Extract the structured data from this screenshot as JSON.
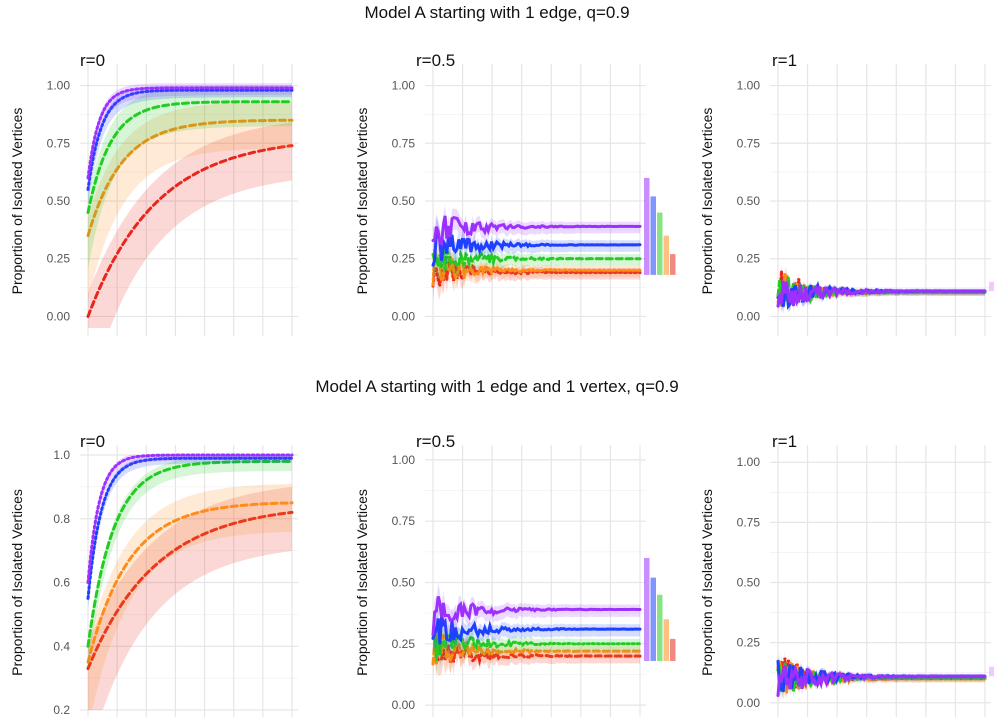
{
  "colors": {
    "purple": "#9b30ff",
    "blue": "#1e40ff",
    "green": "#22cc22",
    "orange": "#ff8c1a",
    "red": "#e8261c"
  },
  "rows": [
    {
      "title": "Model A starting with 1 edge, q=0.9"
    },
    {
      "title": "Model A starting with 1 edge and 1 vertex, q=0.9"
    }
  ],
  "chart_data": [
    {
      "type": "line",
      "row": 0,
      "col": 0,
      "panel_title": "r=0",
      "ylabel": "Proportion of Isolated Vertices",
      "ylim": [
        -0.05,
        1.05
      ],
      "yticks": [
        0,
        0.25,
        0.5,
        0.75,
        1
      ],
      "ytick_labels": [
        "0.00",
        "0.25",
        "0.50",
        "0.75",
        "1.00"
      ],
      "xlim": [
        0,
        100
      ],
      "grid": true,
      "series": [
        {
          "color": "purple",
          "style": "dotted",
          "final": 0.99,
          "start": 0.6,
          "k": 18,
          "band": 0.02
        },
        {
          "color": "blue",
          "style": "dotted",
          "final": 0.98,
          "start": 0.55,
          "k": 15,
          "band": 0.02
        },
        {
          "color": "green",
          "style": "dashed",
          "final": 0.93,
          "start": 0.45,
          "k": 9,
          "band": 0.07
        },
        {
          "color": "orange",
          "style": "dashed",
          "final": 0.85,
          "start": 0.35,
          "k": 6,
          "band": 0.08
        },
        {
          "color": "red",
          "style": "dashed",
          "final": 0.74,
          "start": 0,
          "k": 3,
          "band": 0.1
        }
      ]
    },
    {
      "type": "line",
      "row": 0,
      "col": 1,
      "panel_title": "r=0.5",
      "ylabel": "Proportion of Isolated Vertices",
      "ylim": [
        -0.05,
        1.05
      ],
      "yticks": [
        0,
        0.25,
        0.5,
        0.75,
        1
      ],
      "ytick_labels": [
        "0.00",
        "0.25",
        "0.50",
        "0.75",
        "1.00"
      ],
      "xlim": [
        0,
        100
      ],
      "grid": true,
      "series": [
        {
          "color": "purple",
          "style": "solid",
          "final": 0.39,
          "band": 0.02
        },
        {
          "color": "blue",
          "style": "solid",
          "final": 0.31,
          "band": 0.02
        },
        {
          "color": "green",
          "style": "dashed",
          "final": 0.25,
          "band": 0.02
        },
        {
          "color": "orange",
          "style": "dotted",
          "final": 0.2,
          "band": 0.02
        },
        {
          "color": "red",
          "style": "dotted",
          "final": 0.19,
          "band": 0.02
        }
      ],
      "side_bars": [
        0.6,
        0.52,
        0.45,
        0.35,
        0.27
      ]
    },
    {
      "type": "line",
      "row": 0,
      "col": 2,
      "panel_title": "r=1",
      "ylabel": "Proportion of Isolated Vertices",
      "ylim": [
        -0.05,
        1.05
      ],
      "yticks": [
        0,
        0.25,
        0.5,
        0.75,
        1
      ],
      "ytick_labels": [
        "0.00",
        "0.25",
        "0.50",
        "0.75",
        "1.00"
      ],
      "xlim": [
        0,
        100
      ],
      "grid": true,
      "series": [
        {
          "color": "purple",
          "style": "solid",
          "final": 0.11,
          "band": 0.01
        },
        {
          "color": "blue",
          "style": "solid",
          "final": 0.11,
          "band": 0.01
        },
        {
          "color": "green",
          "style": "dashed",
          "final": 0.105,
          "band": 0.01
        },
        {
          "color": "orange",
          "style": "dashed",
          "final": 0.105,
          "band": 0.01
        },
        {
          "color": "red",
          "style": "dotted",
          "final": 0.105,
          "band": 0.01
        }
      ],
      "side_bars": [
        0.15
      ]
    },
    {
      "type": "line",
      "row": 1,
      "col": 0,
      "panel_title": "r=0",
      "ylabel": "Proportion of Isolated Vertices",
      "ylim": [
        0.2,
        1.0
      ],
      "yticks": [
        0.2,
        0.4,
        0.6,
        0.8,
        1.0
      ],
      "ytick_labels": [
        "0.2",
        "0.4",
        "0.6",
        "0.8",
        "1.0"
      ],
      "xlim": [
        0,
        100
      ],
      "grid": true,
      "series": [
        {
          "color": "purple",
          "style": "dotted",
          "final": 1.0,
          "start": 0.6,
          "k": 18,
          "band": 0.01
        },
        {
          "color": "blue",
          "style": "dotted",
          "final": 0.99,
          "start": 0.55,
          "k": 15,
          "band": 0.01
        },
        {
          "color": "green",
          "style": "dashed",
          "final": 0.98,
          "start": 0.4,
          "k": 8,
          "band": 0.02
        },
        {
          "color": "orange",
          "style": "dashed",
          "final": 0.85,
          "start": 0.35,
          "k": 5,
          "band": 0.06
        },
        {
          "color": "red",
          "style": "dashed",
          "final": 0.82,
          "start": 0.33,
          "k": 3,
          "band": 0.08
        }
      ]
    },
    {
      "type": "line",
      "row": 1,
      "col": 1,
      "panel_title": "r=0.5",
      "ylabel": "Proportion of Isolated Vertices",
      "ylim": [
        -0.02,
        1.02
      ],
      "yticks": [
        0,
        0.25,
        0.5,
        0.75,
        1
      ],
      "ytick_labels": [
        "0.00",
        "0.25",
        "0.50",
        "0.75",
        "1.00"
      ],
      "xlim": [
        0,
        100
      ],
      "grid": true,
      "series": [
        {
          "color": "purple",
          "style": "solid",
          "final": 0.39,
          "band": 0.02
        },
        {
          "color": "blue",
          "style": "solid",
          "final": 0.31,
          "band": 0.02
        },
        {
          "color": "green",
          "style": "dotted",
          "final": 0.25,
          "band": 0.02
        },
        {
          "color": "orange",
          "style": "dashed",
          "final": 0.22,
          "band": 0.02
        },
        {
          "color": "red",
          "style": "dashed",
          "final": 0.2,
          "band": 0.02
        }
      ],
      "side_bars": [
        0.6,
        0.52,
        0.45,
        0.35,
        0.27
      ]
    },
    {
      "type": "line",
      "row": 1,
      "col": 2,
      "panel_title": "r=1",
      "ylabel": "Proportion of Isolated Vertices",
      "ylim": [
        -0.03,
        1.03
      ],
      "yticks": [
        0,
        0.25,
        0.5,
        0.75,
        1
      ],
      "ytick_labels": [
        "0.00",
        "0.25",
        "0.50",
        "0.75",
        "1.00"
      ],
      "xlim": [
        0,
        100
      ],
      "grid": true,
      "series": [
        {
          "color": "purple",
          "style": "solid",
          "final": 0.11,
          "band": 0.01
        },
        {
          "color": "blue",
          "style": "solid",
          "final": 0.11,
          "band": 0.01
        },
        {
          "color": "green",
          "style": "dashed",
          "final": 0.105,
          "band": 0.01
        },
        {
          "color": "orange",
          "style": "dashed",
          "final": 0.1,
          "band": 0.01
        },
        {
          "color": "red",
          "style": "dotted",
          "final": 0.1,
          "band": 0.01
        }
      ],
      "side_bars": [
        0.15
      ]
    }
  ]
}
